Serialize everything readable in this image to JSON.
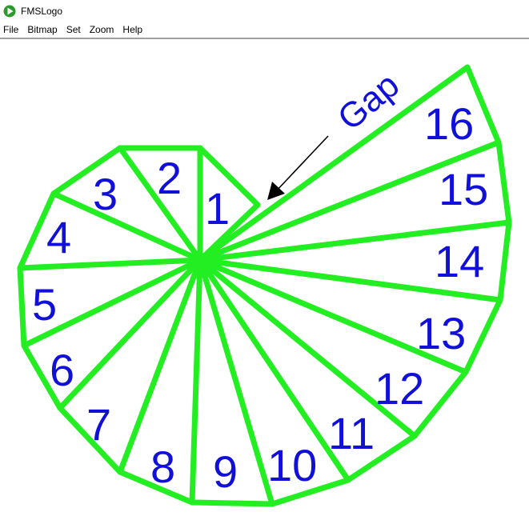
{
  "window": {
    "title": "FMSLogo",
    "icon": "fmslogo-play-icon"
  },
  "menu": {
    "items": [
      "File",
      "Bitmap",
      "Set",
      "Zoom",
      "Help"
    ]
  },
  "drawing": {
    "line_color": "#22ee22",
    "text_color": "#1010d8",
    "annotation": "Gap",
    "segment_labels": [
      "1",
      "2",
      "3",
      "4",
      "5",
      "6",
      "7",
      "8",
      "9",
      "10",
      "11",
      "12",
      "13",
      "14",
      "15",
      "16"
    ]
  }
}
